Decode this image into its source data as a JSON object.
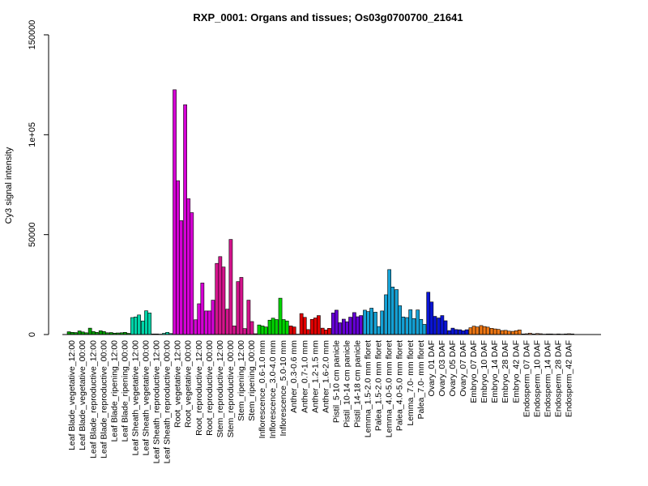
{
  "chart_data": {
    "type": "bar",
    "title": "RXP_0001: Organs and tissues; Os03g0700700_21641",
    "xlabel": "",
    "ylabel": "Cy3 signal intensity",
    "ylim": [
      0,
      150000
    ],
    "yticks": [
      0,
      50000,
      100000,
      150000
    ],
    "ytick_labels": [
      "0",
      "50000",
      "1e+05",
      "150000"
    ],
    "grid": false,
    "legend": "none",
    "categories": [
      "Leaf Blade_vegetative_12:00",
      "Leaf Blade_vegetative_00:00",
      "Leaf Blade_reproductive_12:00",
      "Leaf Blade_reproductive_00:00",
      "Leaf Blade_ripening_12:00",
      "Leaf Blade_ripening_00:00",
      "Leaf Sheath_vegetative_12:00",
      "Leaf Sheath_vegetative_00:00",
      "Leaf Sheath_reproductive_12:00",
      "Leaf Sheath_reproductive_00:00",
      "Root_vegetative_12:00",
      "Root_vegetative_00:00",
      "Root_reproductive_12:00",
      "Root_reproductive_00:00",
      "Stem_reproductive_12:00",
      "Stem_reproductive_00:00",
      "Stem_ripening_12:00",
      "Stem_ripening_00:00",
      "Inflorescence_0.6-1.0 mm",
      "Inflorescence_3.0-4.0 mm",
      "Inflorescence_5.0-10 mm",
      "Anther_0.3-0.6 mm",
      "Anther_0.7-1.0 mm",
      "Anther_1.2-1.5 mm",
      "Anther_1.6-2.0 mm",
      "Pistil_5-10 cm panicle",
      "Pistil_10-14 cm panicle",
      "Pistil_14-18 cm panicle",
      "Lemma_1.5-2.0 mm floret",
      "Palea_1.5-2.0 mm floret",
      "Lemma_4.0-5.0 mm floret",
      "Palea_4.0-5.0 mm floret",
      "Lemma_7.0- mm floret",
      "Palea_7.0- mm floret",
      "Ovary_01 DAF",
      "Ovary_03 DAF",
      "Ovary_05 DAF",
      "Ovary_07 DAF",
      "Embryo_07 DAF",
      "Embryo_10 DAF",
      "Embryo_14 DAF",
      "Embryo_28 DAF",
      "Embryo_42 DAF",
      "Endosperm_07 DAF",
      "Endosperm_10 DAF",
      "Endosperm_14 DAF",
      "Endosperm_28 DAF",
      "Endosperm_42 DAF"
    ],
    "values": [
      [
        1400,
        1100,
        1000
      ],
      [
        1800,
        1300,
        900
      ],
      [
        3200,
        1500,
        1100
      ],
      [
        1900,
        1500,
        900
      ],
      [
        1000,
        700,
        800
      ],
      [
        900,
        1100,
        600
      ],
      [
        8500,
        8800,
        9800
      ],
      [
        6800,
        11900,
        10800
      ],
      [
        300,
        300,
        200
      ],
      [
        600,
        1100,
        500
      ],
      [
        122500,
        77000,
        57000
      ],
      [
        115000,
        68000,
        61000
      ],
      [
        7400,
        15400,
        25800
      ],
      [
        11800,
        11800,
        17200
      ],
      [
        35600,
        39000,
        33800
      ],
      [
        12700,
        47600,
        4300
      ],
      [
        26500,
        28600,
        3000
      ],
      [
        17200,
        6500,
        400
      ],
      [
        4800,
        4300,
        3800
      ],
      [
        7200,
        8200,
        7500
      ],
      [
        18200,
        7500,
        6800
      ],
      [
        4300,
        3800,
        200
      ],
      [
        10500,
        8600,
        2500
      ],
      [
        7600,
        8300,
        9500
      ],
      [
        3200,
        2300,
        3100
      ],
      [
        10800,
        12200,
        5900
      ],
      [
        7700,
        6400,
        8700
      ],
      [
        11000,
        8900,
        9500
      ],
      [
        12200,
        11500,
        13200
      ],
      [
        11200,
        4000,
        11800
      ],
      [
        19900,
        32500,
        23800
      ],
      [
        22500,
        14400,
        8800
      ],
      [
        8500,
        12400,
        8000
      ],
      [
        12300,
        7600,
        5100
      ],
      [
        21200,
        16300,
        9100
      ],
      [
        8300,
        9500,
        6900
      ],
      [
        2000,
        3200,
        2500
      ],
      [
        2400,
        1900,
        2400
      ],
      [
        3400,
        4200,
        3800
      ],
      [
        4500,
        4000,
        3700
      ],
      [
        3100,
        2800,
        2600
      ],
      [
        2000,
        2100,
        1700
      ],
      [
        1600,
        1900,
        2300
      ],
      [
        300,
        400,
        700
      ],
      [
        300,
        500,
        400
      ],
      [
        200,
        300,
        300
      ],
      [
        200,
        300,
        200
      ],
      [
        300,
        400,
        300
      ]
    ],
    "colors": [
      "#00a000",
      "#00a000",
      "#00a000",
      "#00a000",
      "#00a000",
      "#00a000",
      "#00d4a8",
      "#00d4a8",
      "#00d4a8",
      "#00d4a8",
      "#d400d4",
      "#d400d4",
      "#d400d4",
      "#d400d4",
      "#d4148c",
      "#d4148c",
      "#d4148c",
      "#d4148c",
      "#00d400",
      "#00d400",
      "#00d400",
      "#e00000",
      "#e00000",
      "#e00000",
      "#e00000",
      "#6400d4",
      "#6400d4",
      "#6400d4",
      "#14a0d4",
      "#14a0d4",
      "#14a0d4",
      "#14a0d4",
      "#14a0d4",
      "#14a0d4",
      "#0a14d4",
      "#0a14d4",
      "#0a14d4",
      "#0a14d4",
      "#f07814",
      "#f07814",
      "#f07814",
      "#f07814",
      "#f07814",
      "#e89060",
      "#e89060",
      "#e89060",
      "#e89060",
      "#e89060"
    ]
  }
}
